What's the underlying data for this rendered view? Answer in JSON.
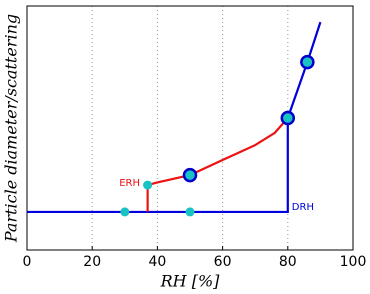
{
  "chart_data": {
    "type": "line",
    "x_label": "RH [%]",
    "y_label": "Particle diameter/scattering",
    "xlim": [
      0,
      100
    ],
    "xticks": [
      0,
      20,
      40,
      60,
      80,
      100
    ],
    "ylim": [
      0,
      1
    ],
    "grid": true,
    "series": [
      {
        "color": "#0000dd",
        "x": [
          0,
          80,
          80,
          86,
          90
        ],
        "values": [
          0.156,
          0.156,
          0.541,
          0.77,
          0.934
        ]
      },
      {
        "color": "#ee1111",
        "x": [
          37,
          37,
          40,
          50,
          60,
          70,
          76,
          80
        ],
        "values": [
          0.156,
          0.266,
          0.277,
          0.307,
          0.369,
          0.43,
          0.48,
          0.541
        ]
      }
    ],
    "markers": [
      {
        "color": "#19c3c3",
        "x": [
          30,
          50,
          37
        ],
        "values": [
          0.156,
          0.156,
          0.266
        ]
      },
      {
        "color": "#19c3c3",
        "edgecolor": "#0000cc",
        "x": [
          50,
          80,
          86
        ],
        "values": [
          0.307,
          0.541,
          0.77
        ]
      }
    ],
    "annotations": [
      {
        "text": "ERH",
        "color": "#ee1111"
      },
      {
        "text": "DRH",
        "color": "#0000dd"
      }
    ]
  }
}
